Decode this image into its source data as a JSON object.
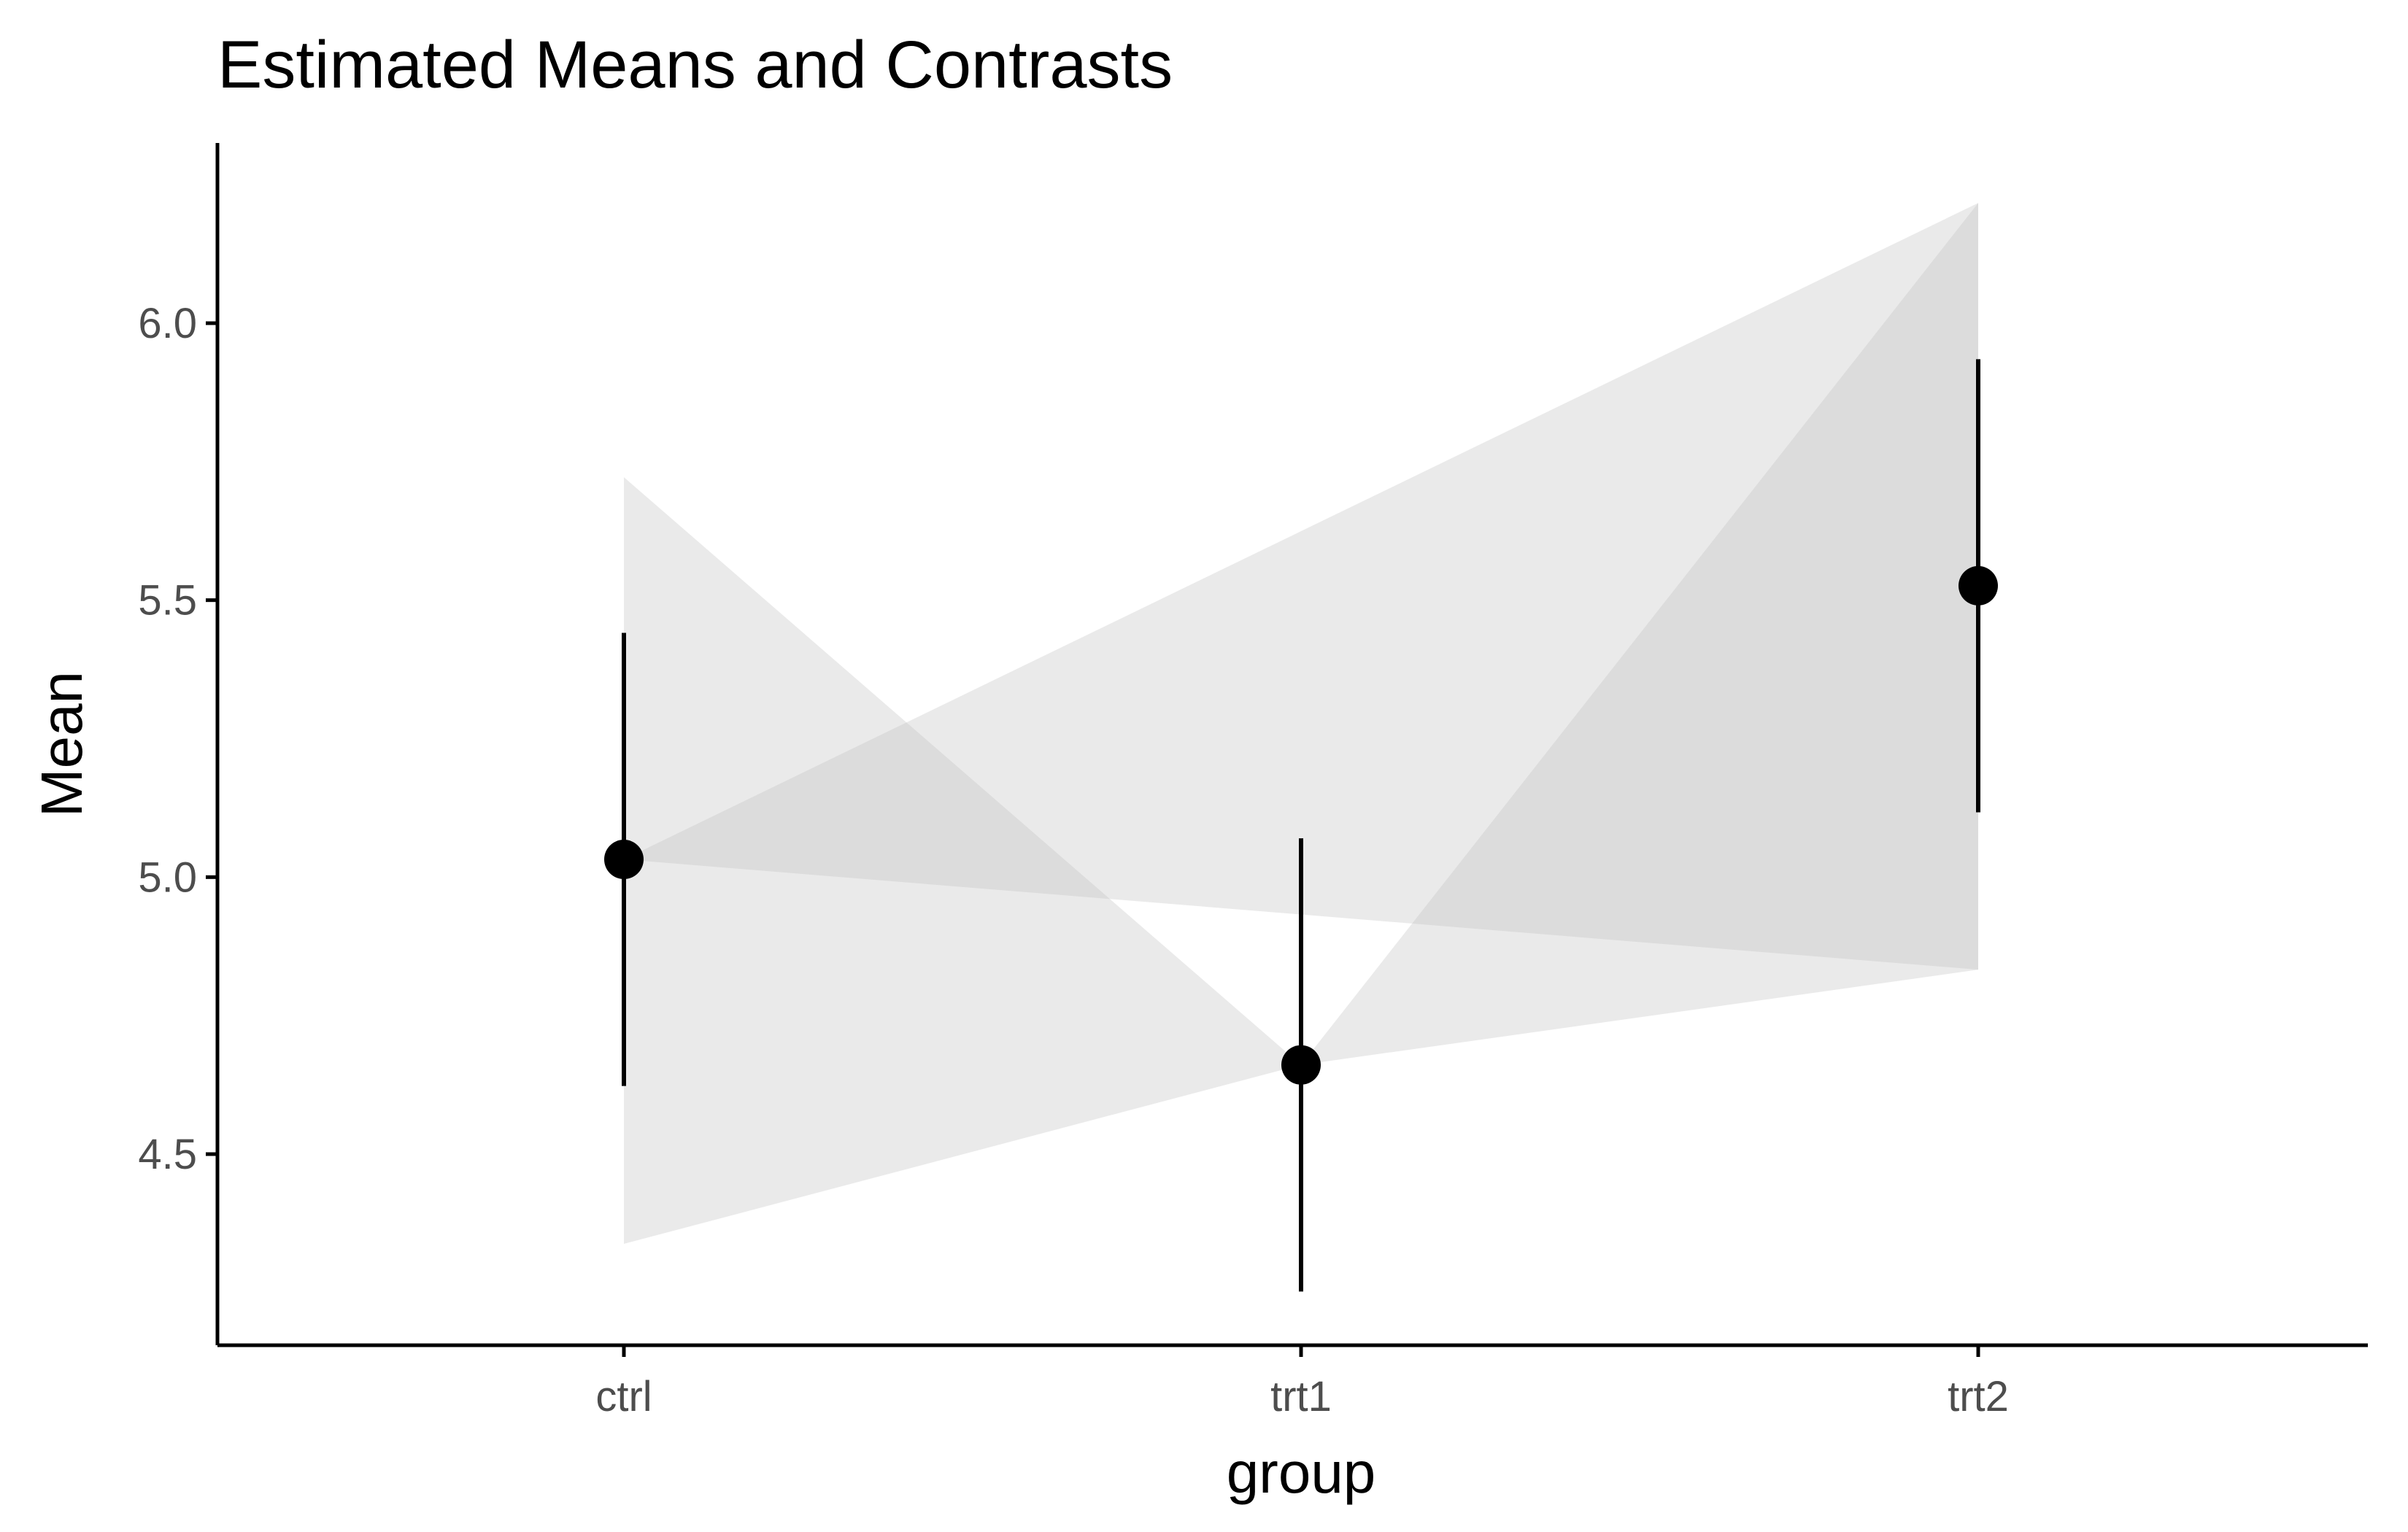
{
  "chart_data": {
    "type": "scatter",
    "title": "Estimated Means and Contrasts",
    "xlabel": "group",
    "ylabel": "Mean",
    "categories": [
      "ctrl",
      "trt1",
      "trt2"
    ],
    "series": [
      {
        "means": [
          5.032,
          4.661,
          5.526
        ],
        "ci_lower": [
          4.623,
          4.252,
          5.117
        ],
        "ci_upper": [
          5.441,
          5.07,
          5.935
        ]
      }
    ],
    "contrasts": [
      {
        "from": "ctrl",
        "to": "trt1",
        "ci_at_from": [
          4.338,
          5.722
        ],
        "at_to": 4.661
      },
      {
        "from": "ctrl",
        "to": "trt2",
        "ci_at_to": [
          4.833,
          6.217
        ],
        "at_from": 5.032
      },
      {
        "from": "trt1",
        "to": "trt2",
        "ci_at_to": [
          4.833,
          6.217
        ],
        "at_from": 4.661
      }
    ],
    "yticks": [
      4.5,
      5.0,
      5.5,
      6.0
    ],
    "ytick_labels": [
      "4.5",
      "5.0",
      "5.5",
      "6.0"
    ],
    "ylim": [
      4.15,
      6.33
    ],
    "grid": false,
    "legend": "none",
    "colors": {
      "points": "#000000",
      "errorbars": "#000000",
      "ribbons": "#bfbfbf",
      "axis": "#000000",
      "tick_labels": "#4d4d4d"
    }
  }
}
